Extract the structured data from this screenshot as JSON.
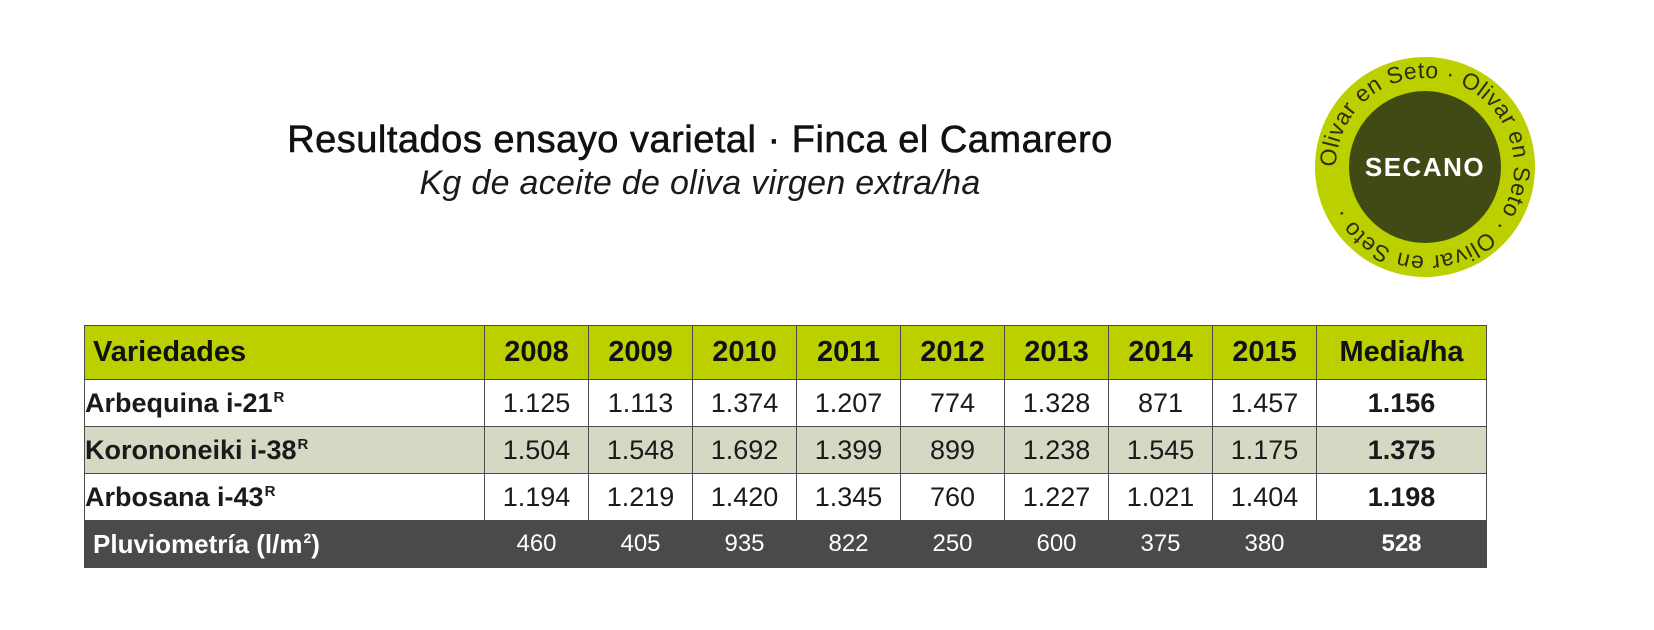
{
  "title": "Resultados ensayo varietal · Finca el Camarero",
  "subtitle": "Kg de aceite de oliva virgen extra/ha",
  "badge": {
    "center_text": "SECANO",
    "ring_text": "Olivar en Seto · Olivar en Seto · Olivar en Seto ·",
    "colors": {
      "ring": "#bcd000",
      "center": "#3f4a14",
      "text": "#ffffff",
      "ring_text": "#2a3010"
    }
  },
  "chart_data": {
    "type": "table",
    "header": {
      "label": "Variedades",
      "years": [
        "2008",
        "2009",
        "2010",
        "2011",
        "2012",
        "2013",
        "2014",
        "2015"
      ],
      "average": "Media/ha"
    },
    "rows": [
      {
        "name": "Arbequina i-21",
        "sup": "R",
        "values": [
          "1.125",
          "1.113",
          "1.374",
          "1.207",
          "774",
          "1.328",
          "871",
          "1.457"
        ],
        "average": "1.156"
      },
      {
        "name": "Korononeiki i-38",
        "sup": "R",
        "values": [
          "1.504",
          "1.548",
          "1.692",
          "1.399",
          "899",
          "1.238",
          "1.545",
          "1.175"
        ],
        "average": "1.375"
      },
      {
        "name": "Arbosana i-43",
        "sup": "R",
        "values": [
          "1.194",
          "1.219",
          "1.420",
          "1.345",
          "760",
          "1.227",
          "1.021",
          "1.404"
        ],
        "average": "1.198"
      }
    ],
    "rainfall": {
      "label": "Pluviometría (l/m",
      "sup": "2",
      "label_end": ")",
      "values": [
        "460",
        "405",
        "935",
        "822",
        "250",
        "600",
        "375",
        "380"
      ],
      "average": "528"
    },
    "colors": {
      "header": "#bcd000",
      "alt_row": "#d5d8c3",
      "rain_row": "#4a4a4a"
    }
  }
}
